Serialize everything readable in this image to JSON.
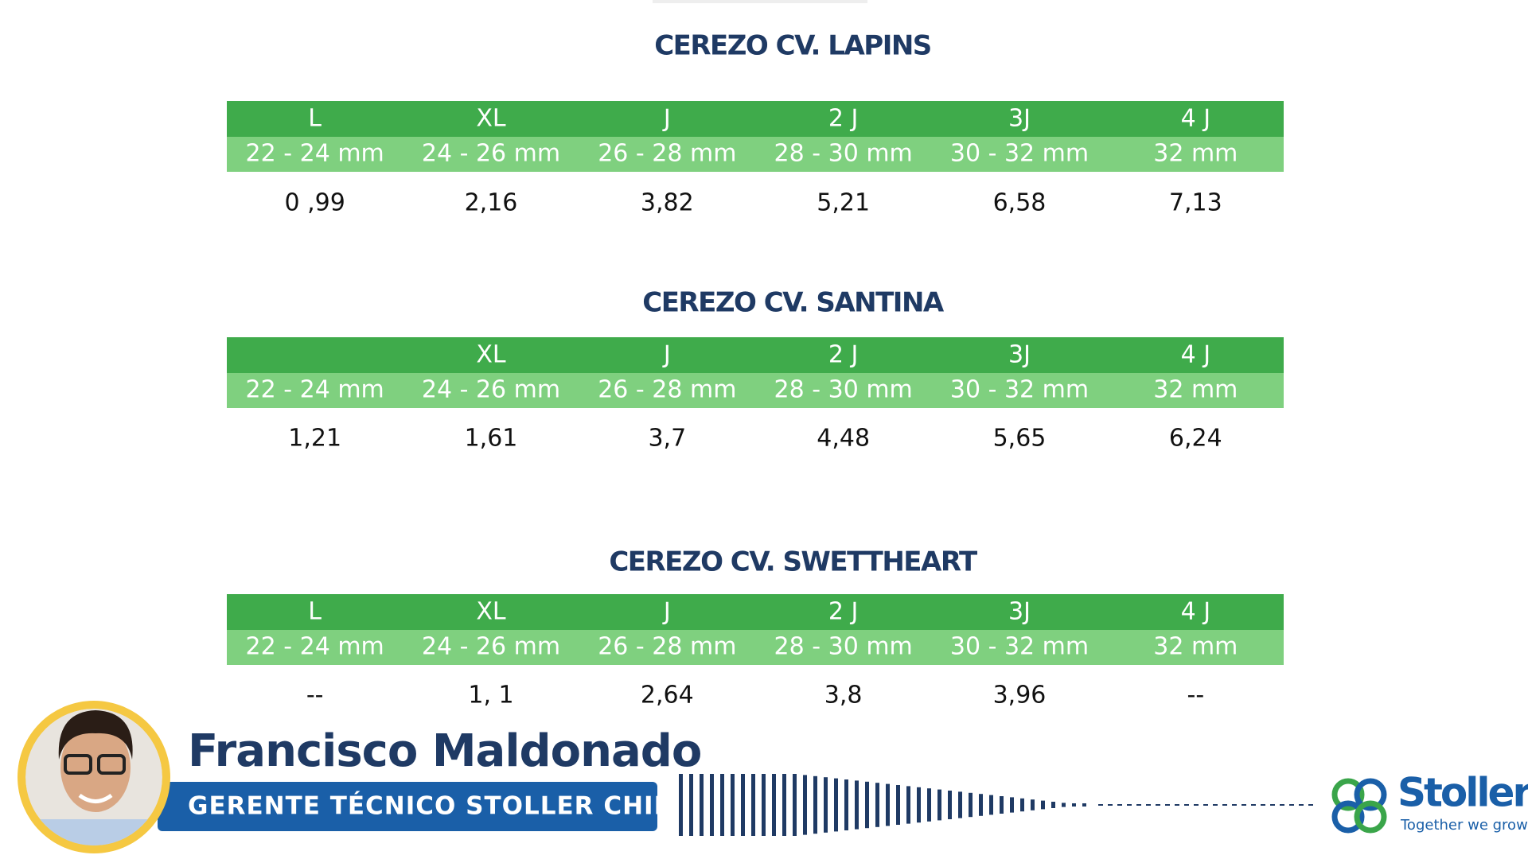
{
  "tables": [
    {
      "title": "CEREZO CV. LAPINS",
      "sizes": [
        "L",
        "XL",
        "J",
        "2 J",
        "3J",
        "4 J"
      ],
      "ranges": [
        "22 - 24 mm",
        "24 - 26 mm",
        "26 - 28 mm",
        "28 - 30 mm",
        "30 - 32 mm",
        "32 mm"
      ],
      "values": [
        "0 ,99",
        "2,16",
        "3,82",
        "5,21",
        "6,58",
        "7,13"
      ]
    },
    {
      "title": "CEREZO CV.  SANTINA",
      "sizes": [
        null,
        "XL",
        "J",
        "2 J",
        "3J",
        "4 J"
      ],
      "ranges": [
        "22 - 24 mm",
        "24 - 26 mm",
        "26 - 28 mm",
        "28 - 30 mm",
        "30 - 32 mm",
        "32 mm"
      ],
      "values": [
        "1,21",
        "1,61",
        "3,7",
        "4,48",
        "5,65",
        "6,24"
      ]
    },
    {
      "title": "CEREZO CV.   SWETTHEART",
      "sizes": [
        "L",
        "XL",
        "J",
        "2 J",
        "3J",
        "4 J"
      ],
      "ranges": [
        "22 - 24 mm",
        "24 - 26 mm",
        "26 - 28 mm",
        "28 - 30 mm",
        "30 - 32 mm",
        "32 mm"
      ],
      "values": [
        "--",
        "1, 1",
        "2,64",
        "3,8",
        "3,96",
        "--"
      ]
    }
  ],
  "speaker": {
    "name": "Francisco Maldonado",
    "role": "GERENTE TÉCNICO STOLLER CHILE"
  },
  "logo": {
    "name": "Stoller",
    "tagline": "Together we grow."
  }
}
